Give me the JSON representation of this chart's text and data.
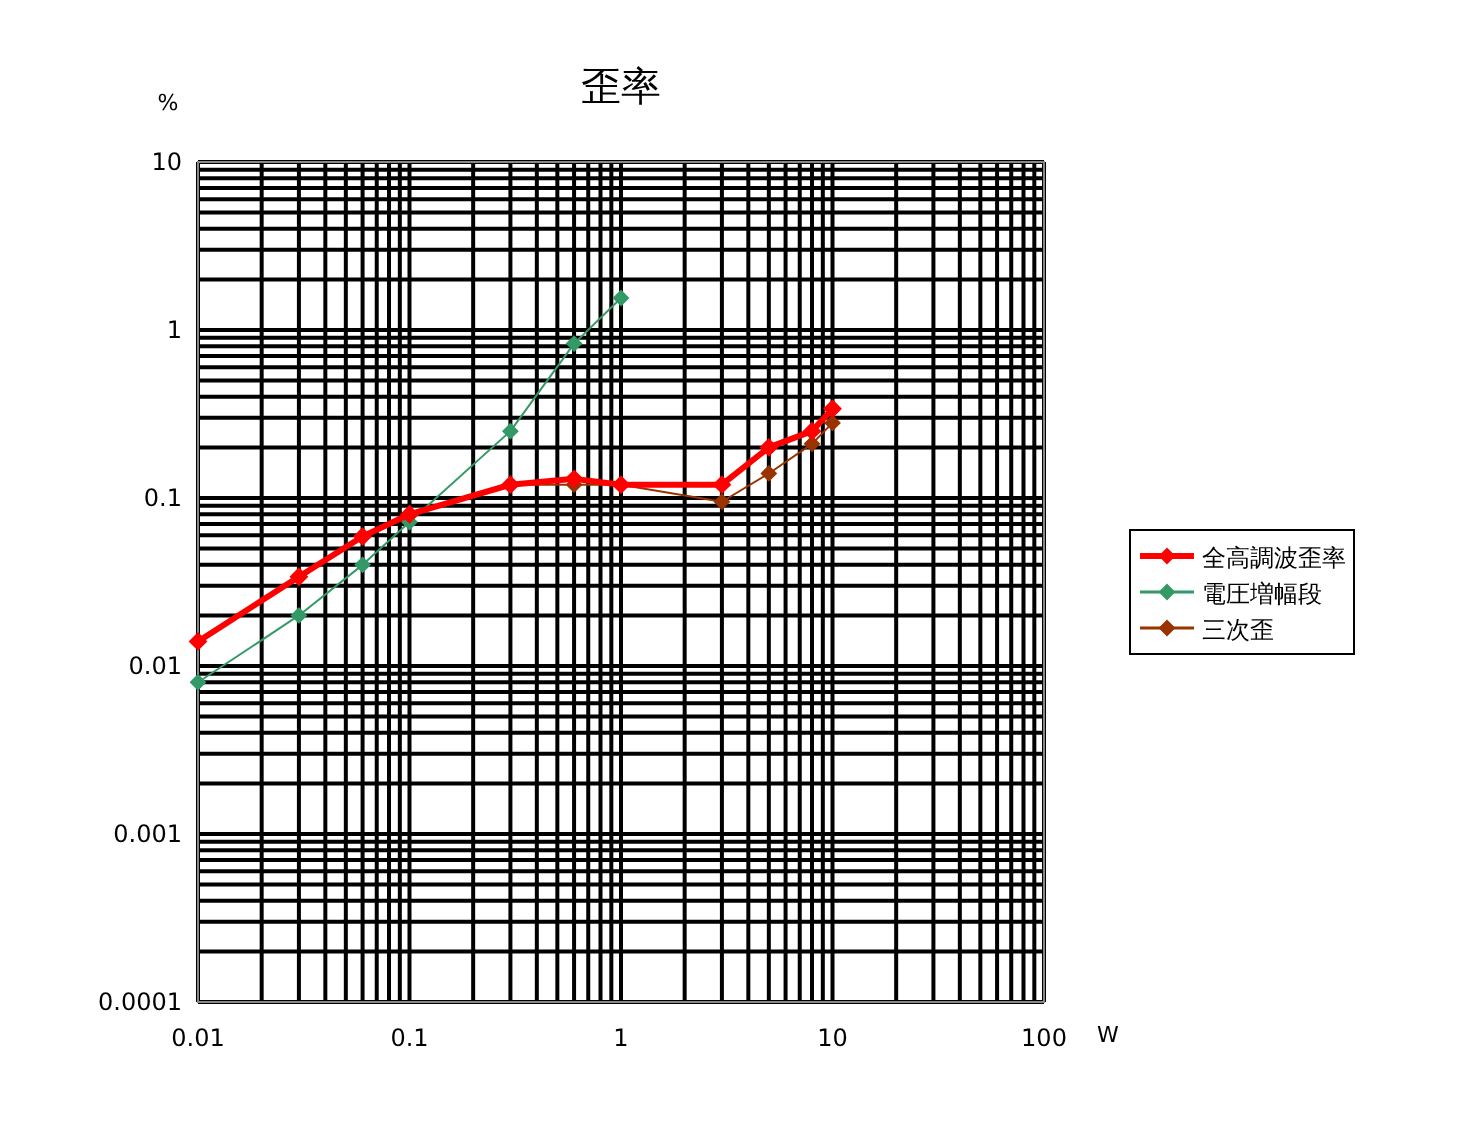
{
  "chart_data": {
    "type": "line",
    "title": "歪率",
    "xlabel": "W",
    "ylabel": "%",
    "log": "xy",
    "grid": true,
    "legend": "right",
    "marker": "diamond",
    "line_style": "solid",
    "xlim": [
      0.01,
      100
    ],
    "ylim": [
      0.0001,
      10
    ],
    "xticks": [
      0.01,
      0.1,
      1,
      10,
      100
    ],
    "yticks": [
      0.0001,
      0.001,
      0.01,
      0.1,
      1,
      10
    ],
    "series": [
      {
        "name": "全高調波歪率",
        "color": "#ff0000",
        "x": [
          0.01,
          0.03,
          0.06,
          0.1,
          0.3,
          0.6,
          1,
          3,
          5,
          8,
          10
        ],
        "values": [
          0.014,
          0.034,
          0.059,
          0.08,
          0.12,
          0.13,
          0.12,
          0.12,
          0.2,
          0.25,
          0.34
        ]
      },
      {
        "name": "電圧増幅段",
        "color": "#339966",
        "x": [
          0.01,
          0.03,
          0.06,
          0.1,
          0.3,
          0.6,
          1
        ],
        "values": [
          0.008,
          0.02,
          0.04,
          0.072,
          0.25,
          0.83,
          1.55
        ]
      },
      {
        "name": "三次歪",
        "color": "#993300",
        "x": [
          0.01,
          0.03,
          0.06,
          0.1,
          0.3,
          0.6,
          1,
          3,
          5,
          8,
          10
        ],
        "values": [
          0.014,
          0.034,
          0.059,
          0.08,
          0.12,
          0.12,
          0.12,
          0.095,
          0.14,
          0.21,
          0.28
        ]
      }
    ]
  }
}
